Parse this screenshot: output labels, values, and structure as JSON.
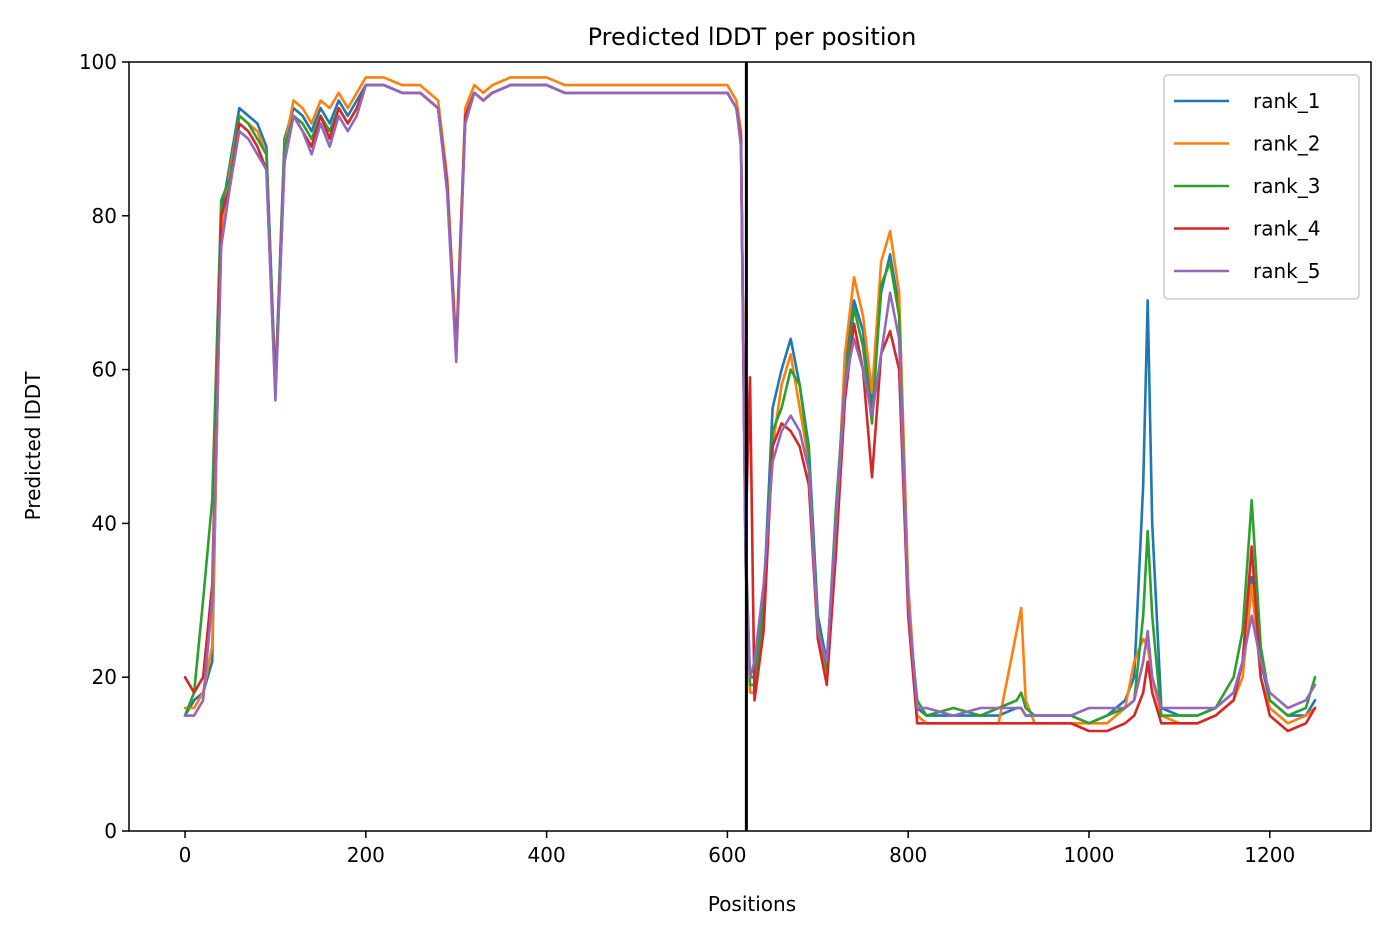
{
  "chart_data": {
    "type": "line",
    "title": "Predicted lDDT per position",
    "xlabel": "Positions",
    "ylabel": "Predicted lDDT",
    "xlim": [
      -62,
      1312
    ],
    "ylim": [
      0,
      100
    ],
    "x_ticks": [
      "0",
      "200",
      "400",
      "600",
      "800",
      "1000",
      "1200"
    ],
    "y_ticks": [
      "0",
      "20",
      "40",
      "60",
      "80",
      "100"
    ],
    "grid": false,
    "legend_position": "top-right",
    "vertical_line": {
      "x": 621,
      "color": "#000000"
    },
    "x": [
      0,
      10,
      20,
      30,
      40,
      50,
      60,
      70,
      80,
      90,
      100,
      110,
      120,
      130,
      140,
      150,
      160,
      170,
      180,
      190,
      200,
      220,
      240,
      260,
      280,
      290,
      300,
      310,
      320,
      330,
      340,
      360,
      380,
      400,
      420,
      440,
      460,
      480,
      500,
      520,
      540,
      560,
      580,
      600,
      610,
      615,
      620,
      625,
      630,
      640,
      650,
      660,
      670,
      680,
      690,
      700,
      710,
      720,
      730,
      740,
      750,
      760,
      770,
      780,
      790,
      800,
      810,
      820,
      850,
      880,
      900,
      920,
      925,
      930,
      940,
      960,
      980,
      1000,
      1020,
      1040,
      1050,
      1060,
      1065,
      1070,
      1080,
      1100,
      1120,
      1140,
      1160,
      1170,
      1180,
      1190,
      1200,
      1220,
      1240,
      1250
    ],
    "series": [
      {
        "name": "rank_1",
        "color": "#1f77b4",
        "values": [
          15,
          17,
          18,
          22,
          80,
          87,
          94,
          93,
          92,
          89,
          58,
          90,
          94,
          93,
          91,
          94,
          92,
          95,
          93,
          95,
          97,
          97,
          96,
          96,
          94,
          84,
          62,
          93,
          96,
          95,
          96,
          97,
          97,
          97,
          96,
          96,
          96,
          96,
          96,
          96,
          96,
          96,
          96,
          96,
          94,
          90,
          38,
          20,
          20,
          30,
          55,
          60,
          64,
          58,
          50,
          28,
          22,
          40,
          60,
          69,
          65,
          55,
          70,
          75,
          68,
          30,
          16,
          15,
          15,
          15,
          15,
          16,
          16,
          15,
          15,
          15,
          15,
          14,
          15,
          17,
          20,
          45,
          69,
          40,
          16,
          15,
          15,
          16,
          18,
          22,
          33,
          22,
          17,
          15,
          15,
          17
        ]
      },
      {
        "name": "rank_2",
        "color": "#ff7f0e",
        "values": [
          16,
          16,
          18,
          24,
          78,
          86,
          93,
          92,
          91,
          88,
          57,
          89,
          95,
          94,
          92,
          95,
          94,
          96,
          94,
          96,
          98,
          98,
          97,
          97,
          95,
          85,
          63,
          94,
          97,
          96,
          97,
          98,
          98,
          98,
          97,
          97,
          97,
          97,
          97,
          97,
          97,
          97,
          97,
          97,
          95,
          91,
          37,
          18,
          18,
          28,
          50,
          58,
          62,
          55,
          48,
          26,
          20,
          38,
          62,
          72,
          67,
          57,
          74,
          78,
          70,
          32,
          15,
          14,
          14,
          14,
          14,
          26,
          29,
          17,
          14,
          14,
          14,
          14,
          14,
          16,
          22,
          25,
          24,
          20,
          15,
          14,
          14,
          15,
          17,
          20,
          32,
          20,
          16,
          14,
          15,
          16
        ]
      },
      {
        "name": "rank_3",
        "color": "#2ca02c",
        "values": [
          15,
          18,
          30,
          43,
          82,
          85,
          93,
          92,
          90,
          88,
          58,
          89,
          93,
          92,
          90,
          93,
          91,
          94,
          92,
          94,
          97,
          97,
          96,
          96,
          94,
          84,
          62,
          93,
          96,
          95,
          96,
          97,
          97,
          97,
          96,
          96,
          96,
          96,
          96,
          96,
          96,
          96,
          96,
          96,
          94,
          90,
          37,
          19,
          19,
          29,
          52,
          55,
          60,
          58,
          49,
          27,
          21,
          42,
          58,
          68,
          63,
          53,
          71,
          74,
          67,
          29,
          17,
          15,
          16,
          15,
          16,
          17,
          18,
          16,
          15,
          15,
          15,
          14,
          15,
          16,
          17,
          28,
          39,
          28,
          15,
          15,
          15,
          16,
          20,
          26,
          43,
          24,
          17,
          15,
          16,
          20
        ]
      },
      {
        "name": "rank_4",
        "color": "#d62728",
        "values": [
          20,
          18,
          20,
          32,
          80,
          84,
          92,
          91,
          89,
          86,
          57,
          87,
          93,
          91,
          89,
          93,
          90,
          94,
          92,
          94,
          97,
          97,
          96,
          96,
          94,
          84,
          62,
          93,
          96,
          95,
          96,
          97,
          97,
          97,
          96,
          96,
          96,
          96,
          96,
          96,
          96,
          96,
          96,
          96,
          94,
          90,
          38,
          59,
          17,
          26,
          50,
          53,
          52,
          50,
          45,
          25,
          19,
          36,
          56,
          66,
          60,
          46,
          62,
          65,
          60,
          28,
          14,
          14,
          14,
          14,
          14,
          14,
          14,
          14,
          14,
          14,
          14,
          13,
          13,
          14,
          15,
          18,
          22,
          18,
          14,
          14,
          14,
          15,
          17,
          22,
          37,
          20,
          15,
          13,
          14,
          16
        ]
      },
      {
        "name": "rank_5",
        "color": "#9467bd",
        "values": [
          15,
          15,
          17,
          30,
          76,
          84,
          91,
          90,
          88,
          86,
          56,
          87,
          93,
          91,
          88,
          92,
          89,
          93,
          91,
          93,
          97,
          97,
          96,
          96,
          94,
          83,
          61,
          92,
          96,
          95,
          96,
          97,
          97,
          97,
          96,
          96,
          96,
          96,
          96,
          96,
          96,
          96,
          96,
          96,
          94,
          89,
          35,
          20,
          22,
          32,
          48,
          52,
          54,
          52,
          47,
          26,
          22,
          40,
          58,
          64,
          60,
          54,
          62,
          70,
          64,
          30,
          16,
          16,
          15,
          16,
          16,
          16,
          16,
          15,
          15,
          15,
          15,
          16,
          16,
          16,
          17,
          22,
          26,
          20,
          16,
          16,
          16,
          16,
          18,
          22,
          28,
          22,
          18,
          16,
          17,
          19
        ]
      }
    ]
  }
}
